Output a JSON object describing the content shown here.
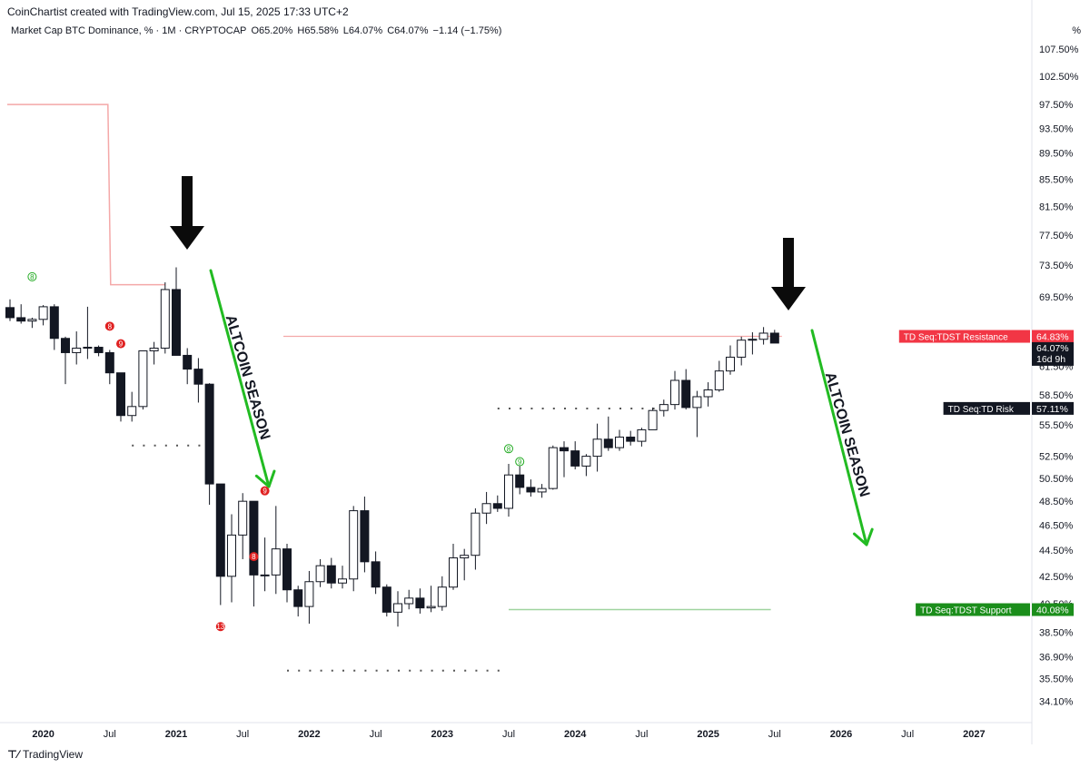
{
  "header": {
    "attribution": "CoinChartist created with TradingView.com, Jul 15, 2025 17:33 UTC+2"
  },
  "legend": {
    "symbol": "Market Cap BTC Dominance, % · 1M · CRYPTOCAP",
    "open": "O65.20%",
    "high": "H65.58%",
    "low": "L64.07%",
    "close": "C64.07%",
    "change": "−1.14 (−1.75%)"
  },
  "axis": {
    "unit": "%",
    "y_ticks": [
      "107.50%",
      "102.50%",
      "97.50%",
      "93.50%",
      "89.50%",
      "85.50%",
      "81.50%",
      "77.50%",
      "73.50%",
      "69.50%",
      "61.50%",
      "58.50%",
      "55.50%",
      "52.50%",
      "50.50%",
      "48.50%",
      "46.50%",
      "44.50%",
      "42.50%",
      "40.50%",
      "38.50%",
      "36.90%",
      "35.50%",
      "34.10%"
    ],
    "x_ticks": [
      "2020",
      "Jul",
      "2021",
      "Jul",
      "2022",
      "Jul",
      "2023",
      "Jul",
      "2024",
      "Jul",
      "2025",
      "Jul",
      "2026",
      "Jul",
      "2027"
    ]
  },
  "price_tags": {
    "resistance": {
      "label": "TD Seq:TDST Resistance",
      "value": "64.83%",
      "color": "#f23645"
    },
    "current": {
      "value": "64.07%",
      "countdown": "16d 9h",
      "color": "#131722"
    },
    "risk": {
      "label": "TD Seq:TD Risk",
      "value": "57.11%",
      "color": "#131722"
    },
    "support": {
      "label": "TD Seq:TDST Support",
      "value": "40.08%",
      "color": "#1b8e1b"
    }
  },
  "annotations": {
    "left_text": "ALTCOIN SEASON",
    "right_text": "ALTCOIN SEASON",
    "arrow_color": "#22bb22"
  },
  "td_labels": [
    "8",
    "8",
    "9",
    "9",
    "8",
    "13",
    "8",
    "9"
  ],
  "footer": {
    "brand": "TradingView"
  },
  "chart_data": {
    "type": "candlestick",
    "title": "Market Cap BTC Dominance, % · 1M · CRYPTOCAP",
    "y_unit": "%",
    "ylim": [
      33.0,
      110.0
    ],
    "y_scale": "log",
    "x_range": [
      "2019-10",
      "2027-04"
    ],
    "candles": [
      {
        "t": "2019-10",
        "o": 68.2,
        "h": 69.2,
        "l": 66.6,
        "c": 67.0
      },
      {
        "t": "2019-11",
        "o": 67.0,
        "h": 68.6,
        "l": 66.3,
        "c": 66.6
      },
      {
        "t": "2019-12",
        "o": 66.6,
        "h": 67.0,
        "l": 65.8,
        "c": 66.8
      },
      {
        "t": "2020-01",
        "o": 66.8,
        "h": 68.5,
        "l": 66.1,
        "c": 68.3
      },
      {
        "t": "2020-02",
        "o": 68.3,
        "h": 68.6,
        "l": 63.3,
        "c": 64.6
      },
      {
        "t": "2020-03",
        "o": 64.6,
        "h": 64.8,
        "l": 59.6,
        "c": 63.0
      },
      {
        "t": "2020-04",
        "o": 63.0,
        "h": 65.4,
        "l": 61.7,
        "c": 63.5
      },
      {
        "t": "2020-05",
        "o": 63.5,
        "h": 68.3,
        "l": 62.3,
        "c": 63.6
      },
      {
        "t": "2020-06",
        "o": 63.6,
        "h": 63.8,
        "l": 62.6,
        "c": 63.0
      },
      {
        "t": "2020-07",
        "o": 63.0,
        "h": 63.3,
        "l": 59.6,
        "c": 60.8
      },
      {
        "t": "2020-08",
        "o": 60.8,
        "h": 60.8,
        "l": 55.8,
        "c": 56.4
      },
      {
        "t": "2020-09",
        "o": 56.4,
        "h": 58.8,
        "l": 55.8,
        "c": 57.3
      },
      {
        "t": "2020-10",
        "o": 57.3,
        "h": 63.1,
        "l": 57.0,
        "c": 63.2
      },
      {
        "t": "2020-11",
        "o": 63.2,
        "h": 64.2,
        "l": 61.7,
        "c": 63.5
      },
      {
        "t": "2020-12",
        "o": 63.5,
        "h": 71.3,
        "l": 62.9,
        "c": 70.4
      },
      {
        "t": "2021-01",
        "o": 70.4,
        "h": 73.2,
        "l": 62.9,
        "c": 62.7
      },
      {
        "t": "2021-02",
        "o": 62.7,
        "h": 63.5,
        "l": 59.6,
        "c": 61.2
      },
      {
        "t": "2021-03",
        "o": 61.2,
        "h": 62.4,
        "l": 57.7,
        "c": 59.6
      },
      {
        "t": "2021-04",
        "o": 59.6,
        "h": 59.7,
        "l": 48.2,
        "c": 50.0
      },
      {
        "t": "2021-05",
        "o": 50.0,
        "h": 50.0,
        "l": 40.4,
        "c": 42.5
      },
      {
        "t": "2021-06",
        "o": 42.5,
        "h": 47.4,
        "l": 40.6,
        "c": 45.7
      },
      {
        "t": "2021-07",
        "o": 45.7,
        "h": 49.2,
        "l": 43.8,
        "c": 48.5
      },
      {
        "t": "2021-08",
        "o": 48.5,
        "h": 48.5,
        "l": 40.3,
        "c": 42.6
      },
      {
        "t": "2021-09",
        "o": 42.6,
        "h": 45.5,
        "l": 41.4,
        "c": 42.6
      },
      {
        "t": "2021-10",
        "o": 42.6,
        "h": 48.1,
        "l": 41.2,
        "c": 44.6
      },
      {
        "t": "2021-11",
        "o": 44.6,
        "h": 45.0,
        "l": 40.6,
        "c": 41.5
      },
      {
        "t": "2021-12",
        "o": 41.5,
        "h": 41.8,
        "l": 39.6,
        "c": 40.3
      },
      {
        "t": "2022-01",
        "o": 40.3,
        "h": 42.9,
        "l": 39.1,
        "c": 42.1
      },
      {
        "t": "2022-02",
        "o": 42.1,
        "h": 43.8,
        "l": 41.7,
        "c": 43.3
      },
      {
        "t": "2022-03",
        "o": 43.3,
        "h": 43.9,
        "l": 41.6,
        "c": 42.0
      },
      {
        "t": "2022-04",
        "o": 42.0,
        "h": 43.3,
        "l": 41.6,
        "c": 42.3
      },
      {
        "t": "2022-05",
        "o": 42.3,
        "h": 48.1,
        "l": 41.4,
        "c": 47.7
      },
      {
        "t": "2022-06",
        "o": 47.7,
        "h": 48.9,
        "l": 42.8,
        "c": 43.6
      },
      {
        "t": "2022-07",
        "o": 43.6,
        "h": 44.4,
        "l": 41.2,
        "c": 41.7
      },
      {
        "t": "2022-08",
        "o": 41.7,
        "h": 41.9,
        "l": 39.6,
        "c": 39.9
      },
      {
        "t": "2022-09",
        "o": 39.9,
        "h": 41.4,
        "l": 38.9,
        "c": 40.5
      },
      {
        "t": "2022-10",
        "o": 40.5,
        "h": 41.5,
        "l": 40.1,
        "c": 40.9
      },
      {
        "t": "2022-11",
        "o": 40.9,
        "h": 41.6,
        "l": 39.8,
        "c": 40.2
      },
      {
        "t": "2022-12",
        "o": 40.2,
        "h": 41.8,
        "l": 39.9,
        "c": 40.3
      },
      {
        "t": "2023-01",
        "o": 40.3,
        "h": 42.5,
        "l": 40.0,
        "c": 41.7
      },
      {
        "t": "2023-02",
        "o": 41.7,
        "h": 45.0,
        "l": 41.5,
        "c": 43.9
      },
      {
        "t": "2023-03",
        "o": 43.9,
        "h": 44.6,
        "l": 42.2,
        "c": 44.1
      },
      {
        "t": "2023-04",
        "o": 44.1,
        "h": 47.9,
        "l": 43.0,
        "c": 47.5
      },
      {
        "t": "2023-05",
        "o": 47.5,
        "h": 49.3,
        "l": 46.6,
        "c": 48.3
      },
      {
        "t": "2023-06",
        "o": 48.3,
        "h": 49.0,
        "l": 47.6,
        "c": 47.9
      },
      {
        "t": "2023-07",
        "o": 47.9,
        "h": 51.8,
        "l": 47.2,
        "c": 50.8
      },
      {
        "t": "2023-08",
        "o": 50.8,
        "h": 51.6,
        "l": 49.1,
        "c": 49.7
      },
      {
        "t": "2023-09",
        "o": 49.7,
        "h": 50.4,
        "l": 48.9,
        "c": 49.3
      },
      {
        "t": "2023-10",
        "o": 49.3,
        "h": 50.0,
        "l": 48.8,
        "c": 49.6
      },
      {
        "t": "2023-11",
        "o": 49.6,
        "h": 53.5,
        "l": 49.5,
        "c": 53.3
      },
      {
        "t": "2023-12",
        "o": 53.3,
        "h": 53.9,
        "l": 50.6,
        "c": 53.0
      },
      {
        "t": "2024-01",
        "o": 53.0,
        "h": 53.9,
        "l": 51.3,
        "c": 51.6
      },
      {
        "t": "2024-02",
        "o": 51.6,
        "h": 52.7,
        "l": 50.7,
        "c": 52.5
      },
      {
        "t": "2024-03",
        "o": 52.5,
        "h": 55.6,
        "l": 51.1,
        "c": 54.1
      },
      {
        "t": "2024-04",
        "o": 54.1,
        "h": 56.3,
        "l": 53.0,
        "c": 53.3
      },
      {
        "t": "2024-05",
        "o": 53.3,
        "h": 55.0,
        "l": 53.0,
        "c": 54.3
      },
      {
        "t": "2024-06",
        "o": 54.3,
        "h": 54.9,
        "l": 53.5,
        "c": 53.9
      },
      {
        "t": "2024-07",
        "o": 53.9,
        "h": 55.2,
        "l": 53.4,
        "c": 55.0
      },
      {
        "t": "2024-08",
        "o": 55.0,
        "h": 57.2,
        "l": 55.1,
        "c": 56.9
      },
      {
        "t": "2024-09",
        "o": 56.9,
        "h": 58.0,
        "l": 56.3,
        "c": 57.5
      },
      {
        "t": "2024-10",
        "o": 57.5,
        "h": 61.0,
        "l": 57.0,
        "c": 60.0
      },
      {
        "t": "2024-11",
        "o": 60.0,
        "h": 61.2,
        "l": 57.0,
        "c": 57.2
      },
      {
        "t": "2024-12",
        "o": 57.2,
        "h": 58.9,
        "l": 54.3,
        "c": 58.3
      },
      {
        "t": "2025-01",
        "o": 58.3,
        "h": 59.8,
        "l": 57.3,
        "c": 59.0
      },
      {
        "t": "2025-02",
        "o": 59.0,
        "h": 62.1,
        "l": 58.8,
        "c": 61.0
      },
      {
        "t": "2025-03",
        "o": 61.0,
        "h": 63.8,
        "l": 60.6,
        "c": 62.5
      },
      {
        "t": "2025-04",
        "o": 62.5,
        "h": 64.8,
        "l": 61.6,
        "c": 64.4
      },
      {
        "t": "2025-05",
        "o": 64.4,
        "h": 65.3,
        "l": 62.8,
        "c": 64.5
      },
      {
        "t": "2025-06",
        "o": 64.5,
        "h": 65.9,
        "l": 63.9,
        "c": 65.2
      },
      {
        "t": "2025-07",
        "o": 65.2,
        "h": 65.58,
        "l": 64.07,
        "c": 64.07
      }
    ],
    "levels": [
      {
        "name": "TD Seq:TDST Resistance",
        "value": 64.83
      },
      {
        "name": "TD Seq:TD Risk",
        "value": 57.11
      },
      {
        "name": "TD Seq:TDST Support",
        "value": 40.08
      }
    ],
    "resistance_step_line": [
      {
        "from": "2019-10",
        "to": "2020-07",
        "value": 97.5
      },
      {
        "from": "2020-07",
        "to": "2020-09",
        "value": 71.0
      },
      {
        "from": "2020-09",
        "to": "2020-12",
        "value": 71.0
      }
    ],
    "dotted_lines": [
      {
        "from": "2020-09",
        "to": "2021-03",
        "value": 53.5
      },
      {
        "from": "2021-11",
        "to": "2023-06",
        "value": 36.0
      },
      {
        "from": "2023-06",
        "to": "2024-09",
        "value": 57.1
      }
    ],
    "support_line": {
      "from": "2023-07",
      "to": "2025-06",
      "value": 40.08
    },
    "resistance_line": {
      "from": "2021-11",
      "to": "2025-07",
      "value": 64.83
    },
    "black_arrows": [
      "2020-12",
      "2025-05"
    ]
  }
}
